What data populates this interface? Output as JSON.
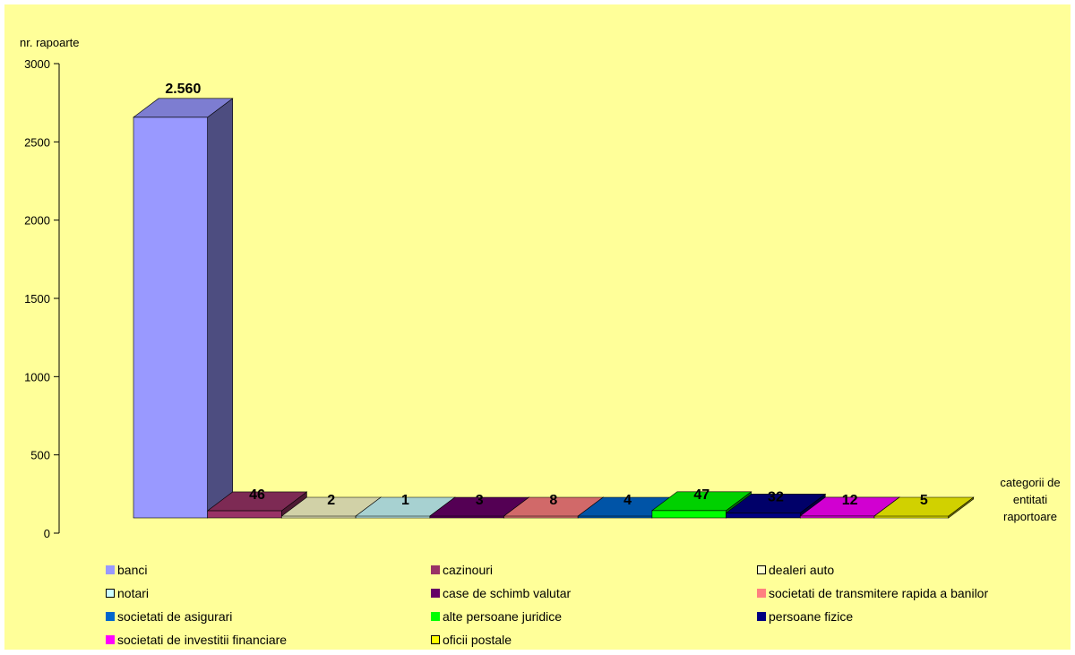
{
  "chart_data": {
    "type": "bar",
    "ylabel": "nr. rapoarte",
    "xlabel": "categorii de\nentitati\nraportoare",
    "ylim": [
      0,
      3000
    ],
    "yticks": [
      0,
      500,
      1000,
      1500,
      2000,
      2500,
      3000
    ],
    "categories": [
      "banci",
      "cazinouri",
      "dealeri auto",
      "notari",
      "case de schimb valutar",
      "societati de transmitere rapida a banilor",
      "societati de asigurari",
      "alte persoane juridice",
      "persoane fizice",
      "societati de investitii financiare",
      "oficii postale"
    ],
    "values": [
      2560,
      46,
      2,
      1,
      3,
      8,
      4,
      47,
      32,
      12,
      5
    ],
    "data_labels": [
      "2.560",
      "46",
      "2",
      "1",
      "3",
      "8",
      "4",
      "47",
      "32",
      "12",
      "5"
    ],
    "colors": [
      "#9999ff",
      "#993366",
      "#ffffcc",
      "#ccffff",
      "#660066",
      "#ff8080",
      "#0066cc",
      "#00ff00",
      "#000080",
      "#ff00ff",
      "#ffff00"
    ],
    "background": "#ffff99",
    "legend_position": "bottom"
  }
}
